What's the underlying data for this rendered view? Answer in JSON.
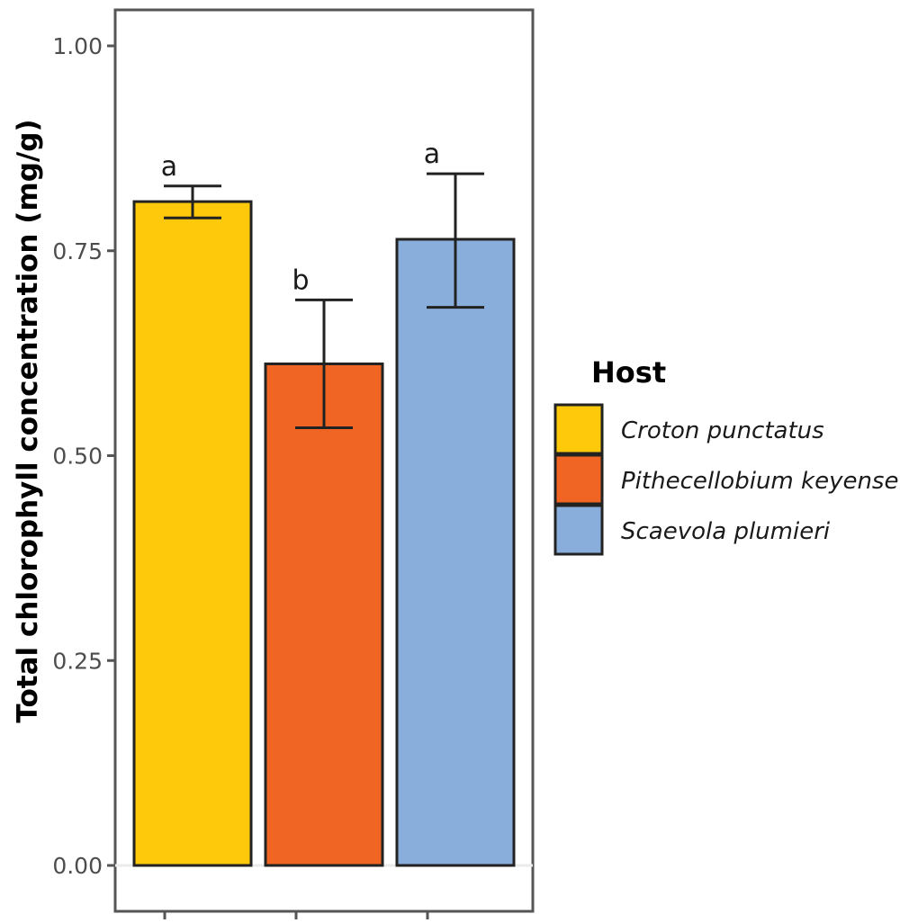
{
  "chart_data": {
    "type": "bar",
    "ylabel": "Total chlorophyll concentration (mg/g)",
    "xlabel": "",
    "ylim": [
      0,
      1.0
    ],
    "yticks": [
      "0.00",
      "0.25",
      "0.50",
      "0.75",
      "1.00"
    ],
    "ytick_values": [
      0,
      0.25,
      0.5,
      0.75,
      1.0
    ],
    "legend_title": "Host",
    "legend_position": "right",
    "grid": false,
    "categories": [
      "Croton punctatus",
      "Pithecellobium keyense",
      "Scaevola plumieri"
    ],
    "values": [
      0.81,
      0.612,
      0.764
    ],
    "error_upper": [
      0.829,
      0.69,
      0.844
    ],
    "error_lower": [
      0.79,
      0.534,
      0.681
    ],
    "significance_labels": [
      "a",
      "b",
      "a"
    ],
    "colors": [
      "#FDC90A",
      "#F06523",
      "#8AAEDC"
    ]
  }
}
